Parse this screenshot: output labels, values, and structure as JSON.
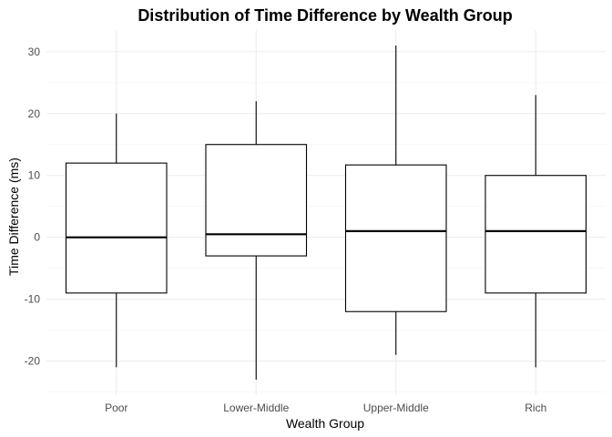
{
  "chart_data": {
    "type": "box",
    "title": "Distribution of Time Difference by Wealth Group",
    "xlabel": "Wealth Group",
    "ylabel": "Time Difference (ms)",
    "ylim": [
      -25.5,
      33.5
    ],
    "y_ticks": [
      -20,
      -10,
      0,
      10,
      20,
      30
    ],
    "grid": true,
    "categories": [
      "Poor",
      "Lower-Middle",
      "Upper-Middle",
      "Rich"
    ],
    "boxes": [
      {
        "category": "Poor",
        "min": -21,
        "q1": -9,
        "median": 0,
        "q3": 12,
        "max": 20
      },
      {
        "category": "Lower-Middle",
        "min": -23,
        "q1": -3,
        "median": 0.5,
        "q3": 15,
        "max": 22
      },
      {
        "category": "Upper-Middle",
        "min": -19,
        "q1": -12,
        "median": 1,
        "q3": 11.7,
        "max": 31
      },
      {
        "category": "Rich",
        "min": -21,
        "q1": -9,
        "median": 1,
        "q3": 10,
        "max": 23
      }
    ]
  }
}
